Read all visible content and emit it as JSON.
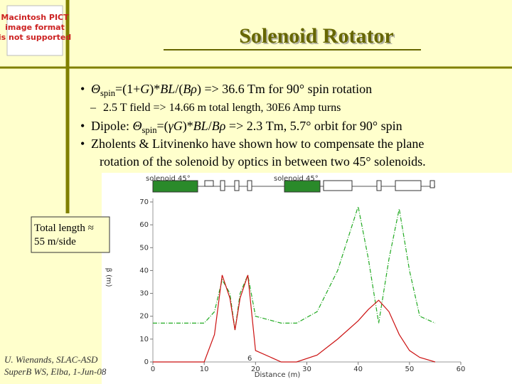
{
  "image_placeholder": {
    "lines": [
      "Macintosh PICT",
      "image format",
      "is not supported"
    ]
  },
  "header": {
    "title": "Solenoid Rotator"
  },
  "bullets": [
    {
      "marker": "•",
      "level": 1,
      "lines": [
        [
          {
            "text": "Θ",
            "style": "italic"
          },
          {
            "text": "spin",
            "style": "sub"
          },
          {
            "text": "=(1+",
            "style": "normal"
          },
          {
            "text": "G",
            "style": "italic"
          },
          {
            "text": ")*",
            "style": "normal"
          },
          {
            "text": "BL",
            "style": "italic"
          },
          {
            "text": "/(",
            "style": "normal"
          },
          {
            "text": "Bρ",
            "style": "italic"
          },
          {
            "text": ") => 36.6 Tm for 90° spin rotation",
            "style": "normal"
          }
        ]
      ]
    },
    {
      "marker": "–",
      "level": 2,
      "lines": [
        [
          {
            "text": "2.5 T field => 14.66 m total length, 30E6 Amp turns",
            "style": "normal"
          }
        ]
      ]
    },
    {
      "marker": "•",
      "level": 1,
      "lines": [
        [
          {
            "text": "Dipole: ",
            "style": "normal"
          },
          {
            "text": "Θ",
            "style": "italic"
          },
          {
            "text": "spin",
            "style": "sub"
          },
          {
            "text": "=(",
            "style": "normal"
          },
          {
            "text": "γG",
            "style": "italic"
          },
          {
            "text": ")*",
            "style": "normal"
          },
          {
            "text": "BL",
            "style": "italic"
          },
          {
            "text": "/",
            "style": "normal"
          },
          {
            "text": "Bρ",
            "style": "italic"
          },
          {
            "text": " => 2.3 Tm, 5.7° orbit for 90° spin",
            "style": "normal"
          }
        ]
      ]
    },
    {
      "marker": "•",
      "level": 1,
      "lines": [
        [
          {
            "text": "Zholents & Litvinenko have shown how to compensate the plane",
            "style": "normal"
          }
        ],
        [
          {
            "text": "rotation of  the solenoid by optics in between two 45° solenoids.",
            "style": "normal"
          }
        ]
      ]
    }
  ],
  "callout": {
    "lines": [
      "Total length ≈",
      "55 m/side"
    ]
  },
  "footer": {
    "lines": [
      "U. Wienands, SLAC-ASD",
      "SuperB WS, Elba, 1-Jun-08"
    ]
  },
  "plot": {
    "type": "line",
    "x_label": "Distance (m)",
    "y_label": "β (m)",
    "annotation": "6",
    "lattice_labels": [
      "solenoid 45°",
      "solenoid 45°"
    ],
    "x": [
      0,
      5,
      10,
      12,
      13.5,
      15,
      16,
      17,
      18.5,
      20,
      25,
      28,
      32,
      36,
      40,
      42,
      44,
      46,
      48,
      50,
      52,
      55
    ],
    "series": [
      {
        "color": "#22aa22",
        "dashed": true,
        "values": [
          17,
          17,
          17,
          22,
          36,
          30,
          14,
          30,
          38,
          20,
          17,
          17,
          22,
          40,
          68,
          45,
          17,
          45,
          67,
          40,
          20,
          17
        ]
      },
      {
        "color": "#cc1111",
        "dashed": false,
        "values": [
          0,
          0,
          0,
          12,
          38,
          28,
          14,
          28,
          38,
          5,
          0,
          0,
          3,
          10,
          18,
          23,
          27,
          22,
          12,
          5,
          2,
          0
        ]
      }
    ],
    "xlim": [
      0,
      60
    ],
    "ylim": [
      0,
      70
    ],
    "xticks": [
      0,
      10,
      20,
      30,
      40,
      50,
      60
    ],
    "yticks": [
      0,
      10,
      20,
      30,
      40,
      50,
      60,
      70
    ]
  }
}
